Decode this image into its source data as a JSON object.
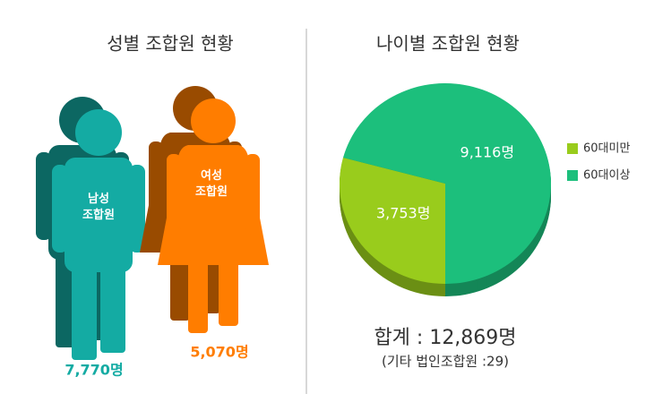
{
  "chart_data": [
    {
      "type": "pictograph",
      "title": "성별 조합원 현황",
      "categories": [
        "남성\n조합원",
        "여성\n조합원"
      ],
      "values": [
        7770,
        5070
      ],
      "value_labels": [
        "7,770명",
        "5,070명"
      ],
      "colors": [
        "#14aba3",
        "#ff7d00"
      ]
    },
    {
      "type": "pie",
      "title": "나이별 조합원 현황",
      "categories": [
        "60대미만",
        "60대이상"
      ],
      "values": [
        3753,
        9116
      ],
      "value_labels": [
        "3,753명",
        "9,116명"
      ],
      "colors": [
        "#99cc1c",
        "#1cbf7c"
      ],
      "legend": "right",
      "annotations": [
        "합계 : 12,869명",
        "(기타 법인조합원 :29)"
      ]
    }
  ]
}
